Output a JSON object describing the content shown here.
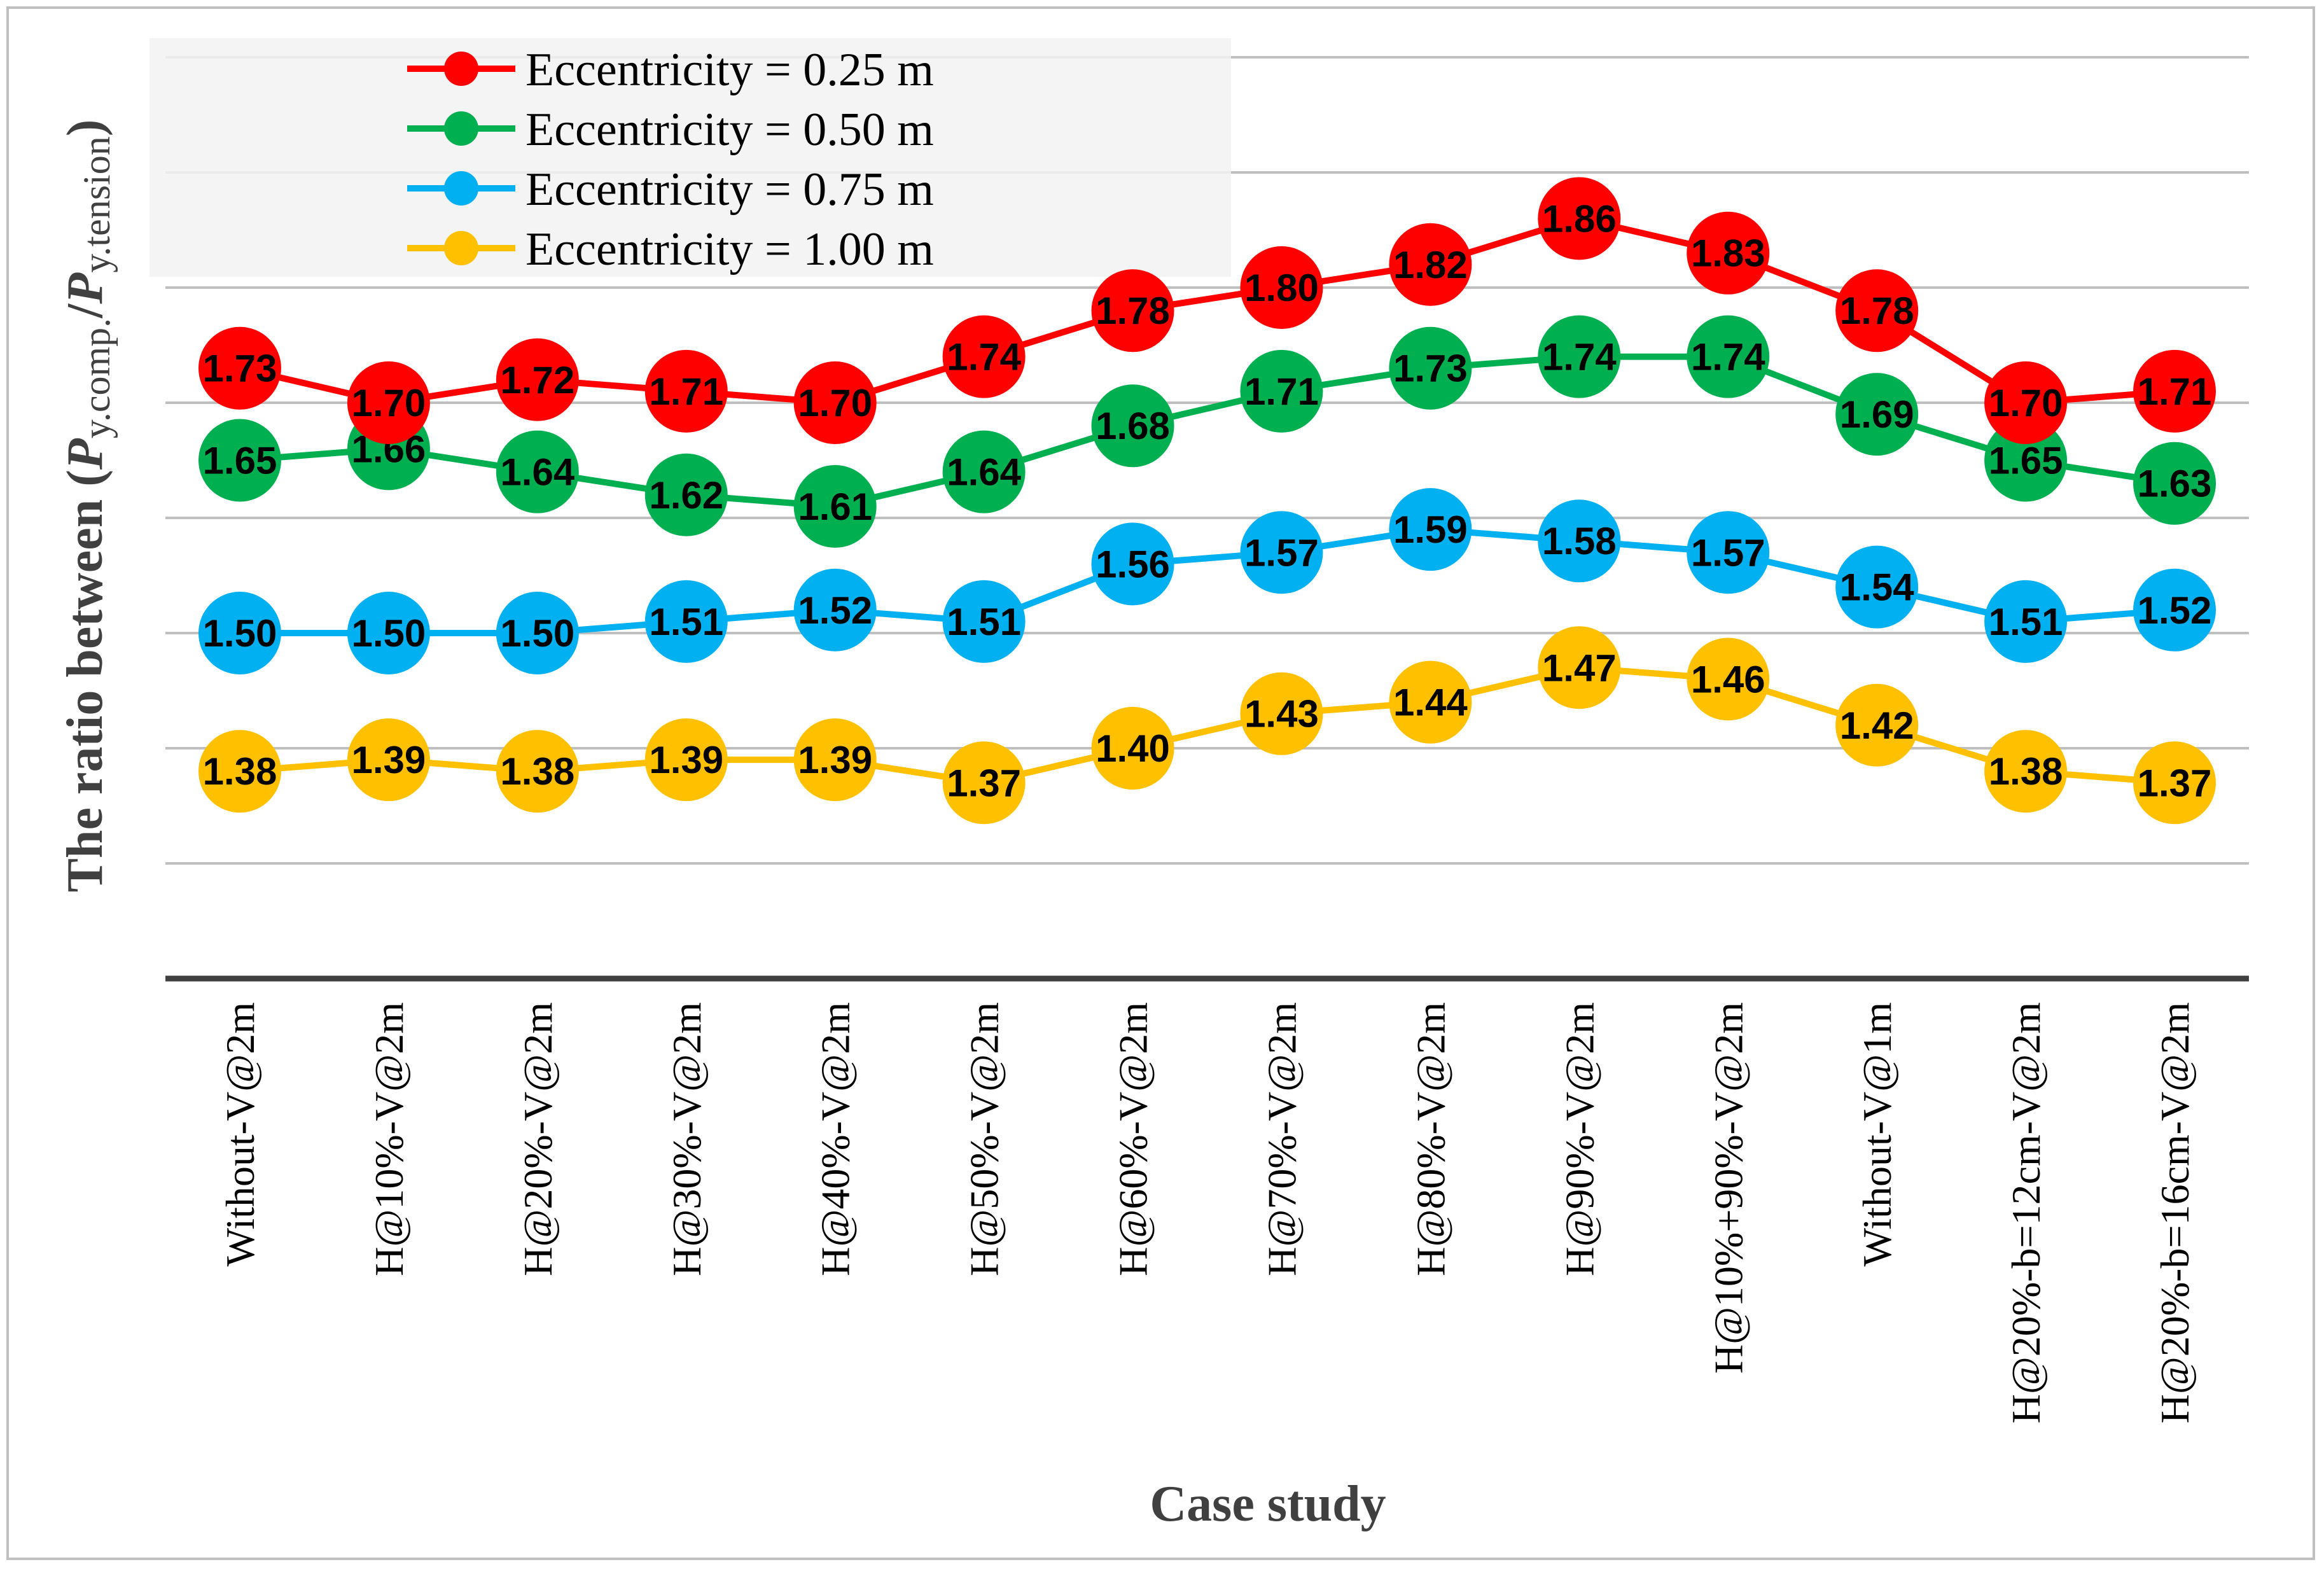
{
  "chart_data": {
    "type": "line",
    "title": "",
    "xlabel": "Case study",
    "ylabel_parts": [
      "The ratio between (",
      "P",
      "y.comp.",
      "/",
      "P",
      "y.tension",
      ")"
    ],
    "ylim": [
      1.2,
      2.0
    ],
    "grid": true,
    "legend_position": "top-left",
    "categories": [
      "Without-V@2m",
      "H@10%-V@2m",
      "H@20%-V@2m",
      "H@30%-V@2m",
      "H@40%-V@2m",
      "H@50%-V@2m",
      "H@60%-V@2m",
      "H@70%-V@2m",
      "H@80%-V@2m",
      "H@90%-V@2m",
      "H@10%+90%-V@2m",
      "Without-V@1m",
      "H@20%-b=12cm-V@2m",
      "H@20%-b=16cm-V@2m"
    ],
    "series": [
      {
        "name": "Eccentricity = 0.25 m",
        "color": "#ff0000",
        "values": [
          1.73,
          1.7,
          1.72,
          1.71,
          1.7,
          1.74,
          1.78,
          1.8,
          1.82,
          1.86,
          1.83,
          1.78,
          1.7,
          1.71
        ],
        "labels": [
          "1.73",
          "1.70",
          "1.72",
          "1.71",
          "1.70",
          "1.74",
          "1.78",
          "1.80",
          "1.82",
          "1.86",
          "1.83",
          "1.78",
          "1.70",
          "1.71"
        ]
      },
      {
        "name": "Eccentricity = 0.50 m",
        "color": "#00b050",
        "values": [
          1.65,
          1.66,
          1.64,
          1.62,
          1.61,
          1.64,
          1.68,
          1.71,
          1.73,
          1.74,
          1.74,
          1.69,
          1.65,
          1.63
        ],
        "labels": [
          "1.65",
          "1.66",
          "1.64",
          "1.62",
          "1.61",
          "1.64",
          "1.68",
          "1.71",
          "1.73",
          "1.74",
          "1.74",
          "1.69",
          "1.65",
          "1.63"
        ]
      },
      {
        "name": "Eccentricity = 0.75 m",
        "color": "#00b0f0",
        "values": [
          1.5,
          1.5,
          1.5,
          1.51,
          1.52,
          1.51,
          1.56,
          1.57,
          1.59,
          1.58,
          1.57,
          1.54,
          1.51,
          1.52
        ],
        "labels": [
          "1.50",
          "1.50",
          "1.50",
          "1.51",
          "1.52",
          "1.51",
          "1.56",
          "1.57",
          "1.59",
          "1.58",
          "1.57",
          "1.54",
          "1.51",
          "1.52"
        ]
      },
      {
        "name": "Eccentricity = 1.00 m",
        "color": "#ffc000",
        "values": [
          1.38,
          1.39,
          1.38,
          1.39,
          1.39,
          1.37,
          1.4,
          1.43,
          1.44,
          1.47,
          1.46,
          1.42,
          1.38,
          1.37
        ],
        "labels": [
          "1.38",
          "1.39",
          "1.38",
          "1.39",
          "1.39",
          "1.37",
          "1.40",
          "1.43",
          "1.44",
          "1.47",
          "1.46",
          "1.42",
          "1.38",
          "1.37"
        ]
      }
    ]
  },
  "colors": {
    "gridline": "#bfbfbf",
    "axis_line": "#404040",
    "legend_background": "#f2f2f2",
    "frame_border": "#bfbfbf"
  }
}
